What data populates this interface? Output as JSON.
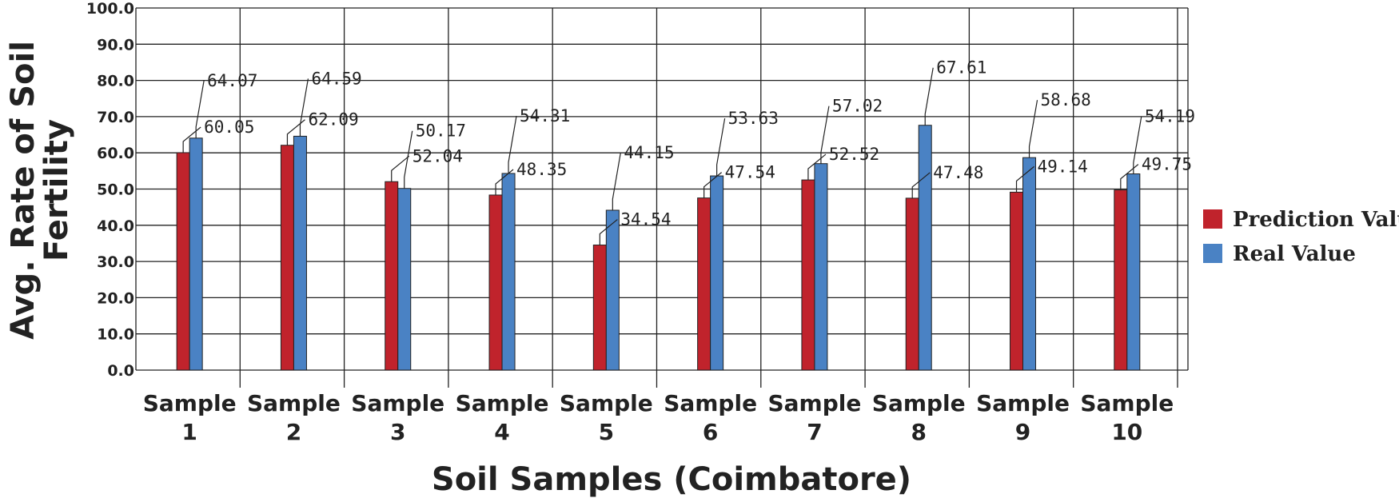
{
  "chart_data": {
    "type": "bar",
    "categories": [
      [
        "Sample",
        "1"
      ],
      [
        "Sample",
        "2"
      ],
      [
        "Sample",
        "3"
      ],
      [
        "Sample",
        "4"
      ],
      [
        "Sample",
        "5"
      ],
      [
        "Sample",
        "6"
      ],
      [
        "Sample",
        "7"
      ],
      [
        "Sample",
        "8"
      ],
      [
        "Sample",
        "9"
      ],
      [
        "Sample",
        "10"
      ]
    ],
    "series": [
      {
        "name": "Prediction Value",
        "color": "#c0232c",
        "values": [
          60.05,
          62.09,
          52.04,
          48.35,
          34.54,
          47.54,
          52.52,
          47.48,
          49.14,
          49.75
        ]
      },
      {
        "name": "Real Value",
        "color": "#4a82c4",
        "values": [
          64.07,
          64.59,
          50.17,
          54.31,
          44.15,
          53.63,
          57.02,
          67.61,
          58.68,
          54.19
        ]
      }
    ],
    "xlabel": "Soil Samples (Coimbatore)",
    "ylabel": [
      "Avg. Rate of Soil",
      "Fertility"
    ],
    "ylim": [
      0,
      100
    ],
    "ytick_labels": [
      "0.0",
      "10.0",
      "20.0",
      "30.0",
      "40.0",
      "50.0",
      "60.0",
      "70.0",
      "80.0",
      "90.0",
      "100.0"
    ],
    "grid": true,
    "legend_position": "right"
  }
}
